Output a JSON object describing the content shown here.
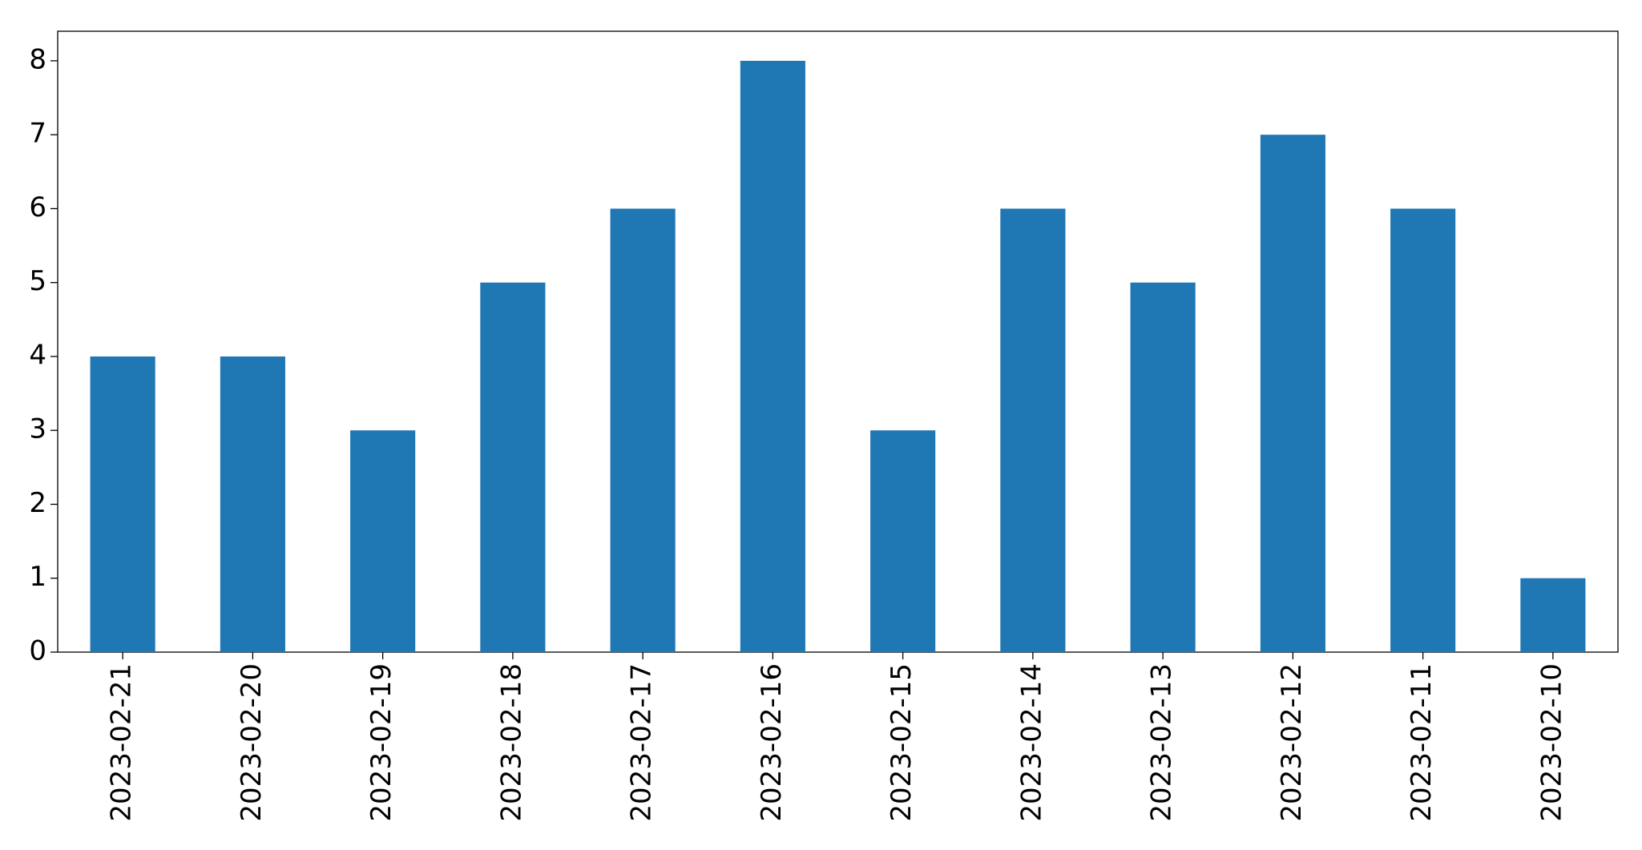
{
  "chart_data": {
    "type": "bar",
    "categories": [
      "2023-02-21",
      "2023-02-20",
      "2023-02-19",
      "2023-02-18",
      "2023-02-17",
      "2023-02-16",
      "2023-02-15",
      "2023-02-14",
      "2023-02-13",
      "2023-02-12",
      "2023-02-11",
      "2023-02-10"
    ],
    "values": [
      4,
      4,
      3,
      5,
      6,
      8,
      3,
      6,
      5,
      7,
      6,
      1
    ],
    "color": "#1f77b4",
    "ylim": [
      0,
      8.4
    ],
    "yticks": [
      0,
      1,
      2,
      3,
      4,
      5,
      6,
      7,
      8
    ],
    "grid": false
  }
}
